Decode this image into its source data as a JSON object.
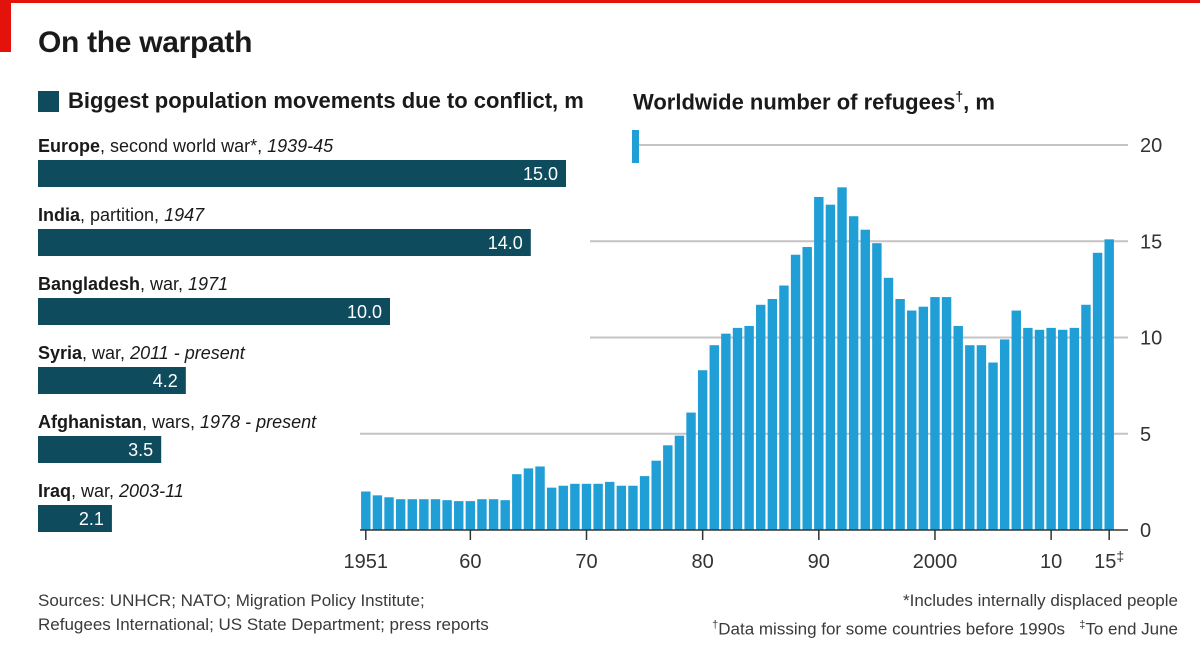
{
  "title": "On the warpath",
  "left_legend": "Biggest population movements due to conflict, m",
  "right_title_main": "Worldwide number of refugees",
  "right_title_mark": "†",
  "right_title_unit": ", m",
  "sources": [
    "Sources: UNHCR; NATO; Migration Policy Institute;",
    "Refugees International; US State Department; press reports"
  ],
  "notes": {
    "includes": "*Includes internally displaced people",
    "dagger_mark": "†",
    "data_missing": "Data missing for some countries before 1990s",
    "ddagger_mark": "‡",
    "to_end_june": "To end June"
  },
  "colors": {
    "accent_red": "#e3120b",
    "bar_dark": "#0e4b5d",
    "bar_light": "#1f9fd6",
    "grid": "#c4c4c4"
  },
  "chart_data": [
    {
      "type": "bar",
      "orientation": "horizontal",
      "title": "Biggest population movements due to conflict, m",
      "series": [
        {
          "name": "Europe",
          "detail": ", second world war*, ",
          "period": "1939-45",
          "value": 15.0,
          "value_label": "15.0"
        },
        {
          "name": "India",
          "detail": ", partition, ",
          "period": "1947",
          "value": 14.0,
          "value_label": "14.0"
        },
        {
          "name": "Bangladesh",
          "detail": ", war, ",
          "period": "1971",
          "value": 10.0,
          "value_label": "10.0"
        },
        {
          "name": "Syria",
          "detail": ", war, ",
          "period": "2011 - present",
          "value": 4.2,
          "value_label": "4.2"
        },
        {
          "name": "Afghanistan",
          "detail": ", wars, ",
          "period": "1978 - present",
          "value": 3.5,
          "value_label": "3.5"
        },
        {
          "name": "Iraq",
          "detail": ", war, ",
          "period": "2003-11",
          "value": 2.1,
          "value_label": "2.1"
        }
      ]
    },
    {
      "type": "bar",
      "title": "Worldwide number of refugees†, m",
      "x_start": 1951,
      "x_end": 2015,
      "values": [
        2.0,
        1.8,
        1.7,
        1.6,
        1.6,
        1.6,
        1.6,
        1.55,
        1.5,
        1.5,
        1.6,
        1.6,
        1.55,
        2.9,
        3.2,
        3.3,
        2.2,
        2.3,
        2.4,
        2.4,
        2.4,
        2.5,
        2.3,
        2.3,
        2.8,
        3.6,
        4.4,
        4.9,
        6.1,
        8.3,
        9.6,
        10.2,
        10.5,
        10.6,
        11.7,
        12.0,
        12.7,
        14.3,
        14.7,
        17.3,
        16.9,
        17.8,
        16.3,
        15.6,
        14.9,
        13.1,
        12.0,
        11.4,
        11.6,
        12.1,
        12.1,
        10.6,
        9.6,
        9.6,
        8.7,
        9.9,
        11.4,
        10.5,
        10.4,
        10.5,
        10.4,
        10.5,
        11.7,
        14.4,
        15.1
      ],
      "y_ticks": [
        "0",
        "5",
        "10",
        "15",
        "20"
      ],
      "y_max": 20,
      "x_tick_labels": [
        {
          "year": 1951,
          "label": "1951",
          "sup": ""
        },
        {
          "year": 1960,
          "label": "60",
          "sup": ""
        },
        {
          "year": 1970,
          "label": "70",
          "sup": ""
        },
        {
          "year": 1980,
          "label": "80",
          "sup": ""
        },
        {
          "year": 1990,
          "label": "90",
          "sup": ""
        },
        {
          "year": 2000,
          "label": "2000",
          "sup": ""
        },
        {
          "year": 2010,
          "label": "10",
          "sup": ""
        },
        {
          "year": 2015,
          "label": "15",
          "sup": "‡"
        }
      ]
    }
  ]
}
